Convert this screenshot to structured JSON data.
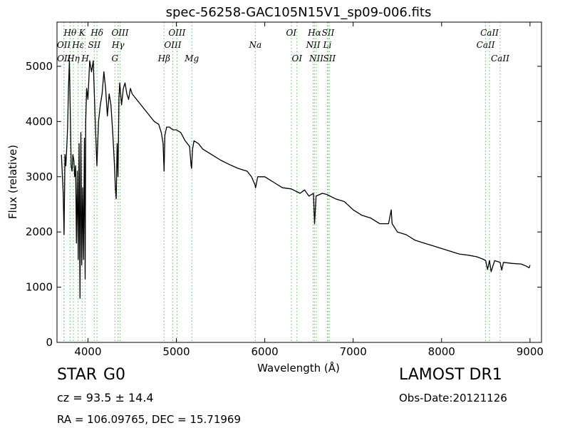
{
  "chart_data": {
    "type": "line",
    "title": "spec-56258-GAC105N15V1_sp09-006.fits",
    "xlabel": "Wavelength (Å)",
    "ylabel": "Flux (relative)",
    "xlim": [
      3650,
      9130
    ],
    "ylim": [
      0,
      5800
    ],
    "xticks": [
      4000,
      5000,
      6000,
      7000,
      8000,
      9000
    ],
    "yticks": [
      0,
      1000,
      2000,
      3000,
      4000,
      5000
    ],
    "grid": false,
    "line_color": "#000000",
    "line_marker_color": "#77c977",
    "series": [
      {
        "x": [
          3700,
          3720,
          3730,
          3740,
          3750,
          3760,
          3770,
          3780,
          3790,
          3800,
          3810,
          3820,
          3830,
          3840,
          3850,
          3860,
          3870,
          3880,
          3890,
          3900,
          3910,
          3920,
          3930,
          3940,
          3950,
          3960,
          3968,
          3975,
          3985,
          4000,
          4020,
          4040,
          4060,
          4080,
          4101,
          4120,
          4140,
          4160,
          4180,
          4200,
          4220,
          4240,
          4260,
          4280,
          4300,
          4310,
          4320,
          4330,
          4340,
          4345,
          4350,
          4360,
          4370,
          4380,
          4400,
          4420,
          4440,
          4460,
          4480,
          4500,
          4550,
          4600,
          4650,
          4700,
          4750,
          4800,
          4830,
          4850,
          4861,
          4870,
          4890,
          4920,
          4960,
          5000,
          5050,
          5100,
          5150,
          5167,
          5172,
          5183,
          5200,
          5250,
          5300,
          5400,
          5500,
          5600,
          5700,
          5800,
          5850,
          5890,
          5896,
          5920,
          6000,
          6100,
          6200,
          6300,
          6400,
          6450,
          6500,
          6550,
          6563,
          6580,
          6650,
          6700,
          6800,
          6900,
          7000,
          7100,
          7200,
          7300,
          7400,
          7430,
          7440,
          7460,
          7500,
          7600,
          7700,
          7800,
          7900,
          8000,
          8100,
          8200,
          8300,
          8400,
          8480,
          8498,
          8520,
          8542,
          8560,
          8600,
          8662,
          8680,
          8700,
          8800,
          8900,
          8960,
          8990,
          9000
        ],
        "y": [
          3400,
          2700,
          1950,
          3400,
          3200,
          3500,
          3900,
          4600,
          5100,
          4200,
          3200,
          3100,
          3400,
          3300,
          3000,
          3200,
          1800,
          3100,
          1500,
          3600,
          800,
          3800,
          1400,
          2800,
          1500,
          3700,
          1150,
          4000,
          4600,
          4400,
          5100,
          4900,
          5100,
          4100,
          3200,
          4000,
          4300,
          4500,
          4900,
          4600,
          4100,
          4500,
          4300,
          3800,
          3200,
          2800,
          2600,
          3600,
          3000,
          3600,
          4400,
          4700,
          4500,
          4300,
          4600,
          4700,
          4500,
          4400,
          4600,
          4500,
          4400,
          4300,
          4200,
          4100,
          4000,
          3950,
          3800,
          3600,
          3100,
          3750,
          3900,
          3900,
          3850,
          3850,
          3800,
          3650,
          3550,
          3200,
          3150,
          3500,
          3650,
          3600,
          3500,
          3400,
          3300,
          3220,
          3150,
          3100,
          3000,
          2850,
          2800,
          3000,
          3000,
          2900,
          2800,
          2780,
          2700,
          2760,
          2650,
          2700,
          2150,
          2650,
          2700,
          2680,
          2600,
          2550,
          2400,
          2300,
          2250,
          2150,
          2150,
          2400,
          2150,
          2100,
          2000,
          1950,
          1850,
          1800,
          1750,
          1700,
          1650,
          1600,
          1580,
          1550,
          1500,
          1480,
          1320,
          1480,
          1280,
          1480,
          1450,
          1310,
          1450,
          1430,
          1420,
          1380,
          1350,
          1400
        ]
      }
    ],
    "lines": [
      {
        "name": "OII",
        "x": 3727,
        "row": 1
      },
      {
        "name": "OII",
        "x": 3729,
        "row": 2
      },
      {
        "name": "Hθ",
        "x": 3798,
        "row": 0
      },
      {
        "name": "Hη",
        "x": 3835,
        "row": 2
      },
      {
        "name": "Hε",
        "x": 3889,
        "row": 1
      },
      {
        "name": "K",
        "x": 3934,
        "row": 0
      },
      {
        "name": "H",
        "x": 3969,
        "row": 2
      },
      {
        "name": "SII",
        "x": 4072,
        "row": 1
      },
      {
        "name": "Hδ",
        "x": 4102,
        "row": 0
      },
      {
        "name": "G",
        "x": 4305,
        "row": 2
      },
      {
        "name": "Hγ",
        "x": 4341,
        "row": 1
      },
      {
        "name": "OIII",
        "x": 4363,
        "row": 0
      },
      {
        "name": "Hβ",
        "x": 4861,
        "row": 2
      },
      {
        "name": "OIII",
        "x": 4959,
        "row": 1
      },
      {
        "name": "OIII",
        "x": 5007,
        "row": 0
      },
      {
        "name": "Mg",
        "x": 5175,
        "row": 2
      },
      {
        "name": "Na",
        "x": 5893,
        "row": 1
      },
      {
        "name": "OI",
        "x": 6300,
        "row": 0
      },
      {
        "name": "OI",
        "x": 6364,
        "row": 2
      },
      {
        "name": "NII",
        "x": 6548,
        "row": 1
      },
      {
        "name": "Hα",
        "x": 6563,
        "row": 0
      },
      {
        "name": "NII",
        "x": 6583,
        "row": 2
      },
      {
        "name": "Li",
        "x": 6708,
        "row": 1
      },
      {
        "name": "SII",
        "x": 6716,
        "row": 0
      },
      {
        "name": "SII",
        "x": 6731,
        "row": 2
      },
      {
        "name": "CaII",
        "x": 8498,
        "row": 1
      },
      {
        "name": "CaII",
        "x": 8542,
        "row": 0
      },
      {
        "name": "CaII",
        "x": 8662,
        "row": 2
      }
    ]
  },
  "info": {
    "class": "STAR",
    "subclass": "G0",
    "cz": "cz = 93.5  ± 14.4",
    "radec": "RA = 106.09765, DEC = 15.71969",
    "survey": "LAMOST DR1",
    "obs_date": "Obs-Date:20121126"
  }
}
